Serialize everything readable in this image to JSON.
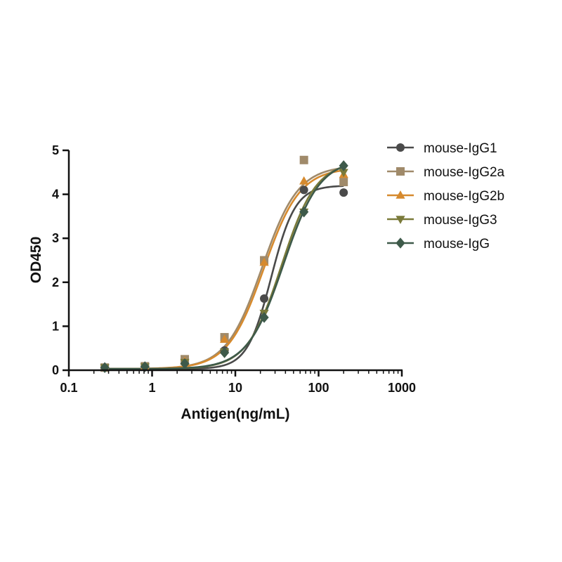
{
  "chart_data": {
    "type": "scatter",
    "title": "",
    "xlabel": "Antigen(ng/mL)",
    "ylabel": "OD450",
    "x_scale": "log",
    "xlim": [
      0.1,
      1000
    ],
    "ylim": [
      0,
      5
    ],
    "x_ticks": [
      "0.1",
      "1",
      "10",
      "100",
      "1000"
    ],
    "y_ticks": [
      "0",
      "1",
      "2",
      "3",
      "4",
      "5"
    ],
    "grid": false,
    "legend_position": "right",
    "x": [
      0.27,
      0.82,
      2.47,
      7.41,
      22.2,
      66.7,
      200
    ],
    "series": [
      {
        "name": "mouse-IgG1",
        "color": "#4a4a4a",
        "marker": "circle",
        "values": [
          0.06,
          0.08,
          0.22,
          0.45,
          1.63,
          4.1,
          4.04
        ],
        "fit": {
          "bottom": 0.03,
          "top": 4.2,
          "ec50": 27,
          "hill": 3.0
        }
      },
      {
        "name": "mouse-IgG2a",
        "color": "#a08a6a",
        "marker": "square",
        "values": [
          0.06,
          0.09,
          0.25,
          0.75,
          2.5,
          4.78,
          4.28
        ],
        "fit": {
          "bottom": 0.03,
          "top": 4.65,
          "ec50": 21,
          "hill": 2.0
        }
      },
      {
        "name": "mouse-IgG2b",
        "color": "#d68a2e",
        "marker": "triangle-up",
        "values": [
          0.06,
          0.08,
          0.2,
          0.7,
          2.45,
          4.3,
          4.45
        ],
        "fit": {
          "bottom": 0.03,
          "top": 4.6,
          "ec50": 22,
          "hill": 2.0
        }
      },
      {
        "name": "mouse-IgG3",
        "color": "#7a7a3a",
        "marker": "triangle-down",
        "values": [
          0.06,
          0.08,
          0.18,
          0.42,
          1.3,
          3.6,
          4.5
        ],
        "fit": {
          "bottom": 0.03,
          "top": 4.75,
          "ec50": 36,
          "hill": 2.1
        }
      },
      {
        "name": "mouse-IgG",
        "color": "#3e5a4a",
        "marker": "diamond",
        "values": [
          0.06,
          0.08,
          0.15,
          0.4,
          1.2,
          3.6,
          4.65
        ],
        "fit": {
          "bottom": 0.03,
          "top": 4.8,
          "ec50": 38,
          "hill": 2.0
        }
      }
    ]
  }
}
